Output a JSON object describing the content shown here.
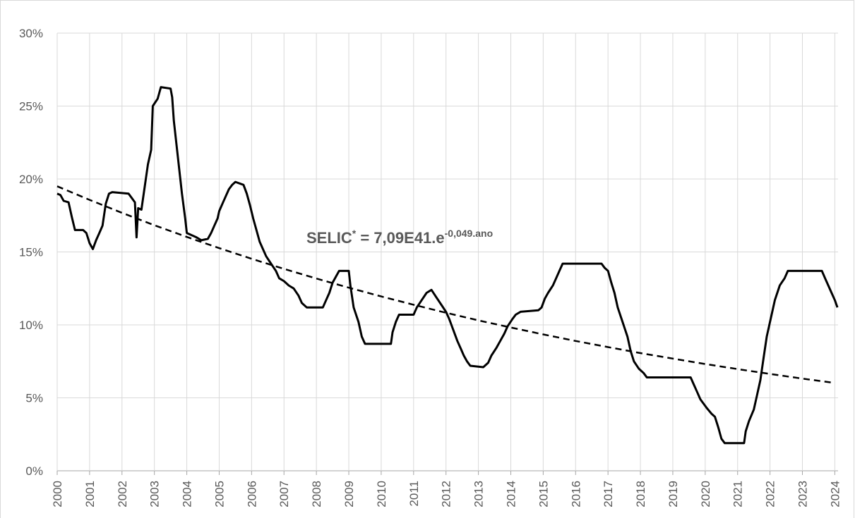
{
  "chart_data": {
    "type": "line",
    "xlim": [
      2000,
      2024.1
    ],
    "xticks": [
      2000,
      2001,
      2002,
      2003,
      2004,
      2005,
      2006,
      2007,
      2008,
      2009,
      2010,
      2011,
      2012,
      2013,
      2014,
      2015,
      2016,
      2017,
      2018,
      2019,
      2020,
      2021,
      2022,
      2023,
      2024
    ],
    "ylim": [
      0,
      30
    ],
    "yticks": [
      {
        "value": 0,
        "label": "0%"
      },
      {
        "value": 5,
        "label": "5%"
      },
      {
        "value": 10,
        "label": "10%"
      },
      {
        "value": 15,
        "label": "15%"
      },
      {
        "value": 20,
        "label": "20%"
      },
      {
        "value": 25,
        "label": "25%"
      },
      {
        "value": 30,
        "label": "30%"
      }
    ],
    "grid": true,
    "annotation": [
      {
        "text": "SELIC",
        "sup": false
      },
      {
        "text": "*",
        "sup": true
      },
      {
        "text": " = 7,09E41.e",
        "sup": false
      },
      {
        "text": "-0,049.ano",
        "sup": true
      }
    ],
    "series": [
      {
        "color": "#000000",
        "dashed": false,
        "x": [
          2000.0,
          2000.1,
          2000.2,
          2000.35,
          2000.45,
          2000.55,
          2000.8,
          2000.9,
          2001.0,
          2001.1,
          2001.2,
          2001.3,
          2001.4,
          2001.5,
          2001.6,
          2001.7,
          2002.2,
          2002.3,
          2002.4,
          2002.45,
          2002.5,
          2002.6,
          2002.8,
          2002.9,
          2002.95,
          2003.1,
          2003.2,
          2003.5,
          2003.55,
          2003.6,
          2003.7,
          2003.8,
          2003.85,
          2003.95,
          2004.0,
          2004.3,
          2004.45,
          2004.65,
          2004.75,
          2004.85,
          2004.95,
          2005.0,
          2005.1,
          2005.2,
          2005.3,
          2005.4,
          2005.5,
          2005.75,
          2005.85,
          2005.95,
          2006.05,
          2006.15,
          2006.25,
          2006.35,
          2006.45,
          2006.6,
          2006.75,
          2006.85,
          2007.0,
          2007.15,
          2007.3,
          2007.45,
          2007.55,
          2007.7,
          2008.2,
          2008.3,
          2008.4,
          2008.5,
          2008.7,
          2009.0,
          2009.05,
          2009.15,
          2009.3,
          2009.4,
          2009.5,
          2010.3,
          2010.35,
          2010.45,
          2010.55,
          2011.0,
          2011.1,
          2011.25,
          2011.4,
          2011.55,
          2011.7,
          2011.85,
          2012.0,
          2012.1,
          2012.2,
          2012.35,
          2012.45,
          2012.55,
          2012.65,
          2012.75,
          2013.15,
          2013.3,
          2013.4,
          2013.55,
          2013.7,
          2013.8,
          2013.9,
          2014.05,
          2014.15,
          2014.3,
          2014.85,
          2014.95,
          2015.05,
          2015.15,
          2015.3,
          2015.4,
          2015.5,
          2015.6,
          2016.8,
          2016.9,
          2017.0,
          2017.1,
          2017.2,
          2017.3,
          2017.45,
          2017.6,
          2017.7,
          2017.8,
          2017.95,
          2018.1,
          2018.2,
          2019.55,
          2019.65,
          2019.75,
          2019.85,
          2019.95,
          2020.05,
          2020.2,
          2020.3,
          2020.4,
          2020.5,
          2020.6,
          2021.2,
          2021.25,
          2021.35,
          2021.5,
          2021.6,
          2021.7,
          2021.8,
          2021.9,
          2022.05,
          2022.15,
          2022.3,
          2022.45,
          2022.55,
          2023.6,
          2023.7,
          2023.8,
          2023.9,
          2024.0,
          2024.08
        ],
        "values": [
          19.0,
          18.9,
          18.5,
          18.4,
          17.4,
          16.5,
          16.5,
          16.3,
          15.6,
          15.2,
          15.8,
          16.3,
          16.8,
          18.3,
          19.0,
          19.1,
          19.0,
          18.7,
          18.4,
          16.0,
          18.0,
          17.9,
          21.0,
          22.0,
          25.0,
          25.5,
          26.3,
          26.2,
          25.6,
          24.0,
          22.0,
          20.0,
          19.0,
          17.3,
          16.3,
          16.0,
          15.8,
          15.9,
          16.3,
          16.8,
          17.3,
          17.8,
          18.3,
          18.8,
          19.3,
          19.6,
          19.8,
          19.6,
          19.0,
          18.2,
          17.3,
          16.5,
          15.7,
          15.2,
          14.7,
          14.2,
          13.7,
          13.2,
          13.0,
          12.7,
          12.5,
          12.0,
          11.5,
          11.2,
          11.2,
          11.7,
          12.2,
          12.9,
          13.7,
          13.7,
          12.7,
          11.2,
          10.2,
          9.2,
          8.7,
          8.7,
          9.5,
          10.2,
          10.7,
          10.7,
          11.2,
          11.7,
          12.2,
          12.4,
          11.9,
          11.4,
          10.9,
          10.4,
          9.8,
          8.9,
          8.4,
          7.9,
          7.5,
          7.2,
          7.1,
          7.4,
          7.9,
          8.4,
          9.0,
          9.4,
          9.9,
          10.4,
          10.7,
          10.9,
          11.0,
          11.2,
          11.8,
          12.2,
          12.7,
          13.2,
          13.7,
          14.2,
          14.2,
          13.9,
          13.7,
          12.9,
          12.2,
          11.2,
          10.2,
          9.2,
          8.2,
          7.5,
          7.0,
          6.7,
          6.4,
          6.4,
          5.9,
          5.4,
          4.9,
          4.6,
          4.3,
          3.9,
          3.7,
          3.0,
          2.2,
          1.9,
          1.9,
          2.7,
          3.4,
          4.2,
          5.2,
          6.2,
          7.7,
          9.2,
          10.7,
          11.7,
          12.7,
          13.2,
          13.7,
          13.7,
          13.2,
          12.7,
          12.2,
          11.7,
          11.2
        ]
      },
      {
        "color": "#000000",
        "dashed": true,
        "x": [
          2000,
          2001,
          2002,
          2003,
          2004,
          2005,
          2006,
          2007,
          2008,
          2009,
          2010,
          2011,
          2012,
          2013,
          2014,
          2015,
          2016,
          2017,
          2018,
          2019,
          2020,
          2021,
          2022,
          2023,
          2024
        ],
        "values": [
          19.5,
          18.57,
          17.68,
          16.83,
          16.03,
          15.26,
          14.53,
          13.84,
          13.18,
          12.55,
          11.95,
          11.38,
          10.83,
          10.31,
          9.82,
          9.35,
          8.9,
          8.48,
          8.07,
          7.69,
          7.32,
          6.97,
          6.64,
          6.32,
          6.02
        ]
      }
    ]
  }
}
